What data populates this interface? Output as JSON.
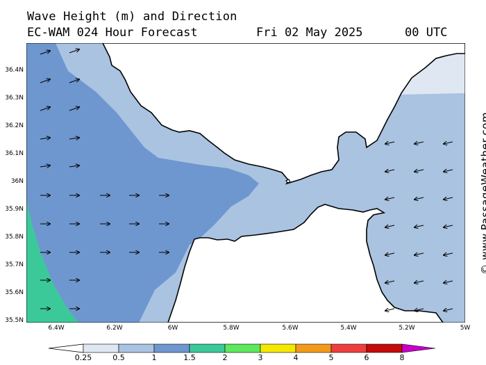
{
  "header": {
    "line1": "Wave Height (m) and Direction",
    "model": "EC-WAM 024 Hour Forecast",
    "date": "Fri 02 May 2025",
    "time": "00 UTC"
  },
  "credit": "© www.PassageWeather.com",
  "map": {
    "lat_labels": [
      "36.4N",
      "36.3N",
      "36.2N",
      "36.1N",
      "36N",
      "35.9N",
      "35.8N",
      "35.7N",
      "35.6N",
      "35.5N"
    ],
    "lon_labels": [
      "6.4W",
      "6.2W",
      "6W",
      "5.8W",
      "5.6W",
      "5.4W",
      "5.2W",
      "5W"
    ],
    "lat_range": [
      35.5,
      36.5
    ],
    "lon_range": [
      -6.5,
      -5.0
    ],
    "colors": {
      "land": "#ffffff",
      "band_0_25": "#dfe7f3",
      "band_0_5": "#a9c3e1",
      "band_1": "#6e97d0",
      "band_1_5": "#3cc99a",
      "coast": "#000000"
    },
    "arrows": {
      "west_direction": "east (toward)",
      "east_direction": "south-west (toward)"
    }
  },
  "scale": {
    "labels": [
      "0.25",
      "0.5",
      "1",
      "1.5",
      "2",
      "3",
      "4",
      "5",
      "6",
      "8"
    ],
    "colors": [
      "#dfe7f3",
      "#a9c3e1",
      "#6e97d0",
      "#3cc99a",
      "#5ee85e",
      "#f5e800",
      "#f39a1c",
      "#ee3f3f",
      "#c40c0c",
      "#c800c8"
    ]
  }
}
